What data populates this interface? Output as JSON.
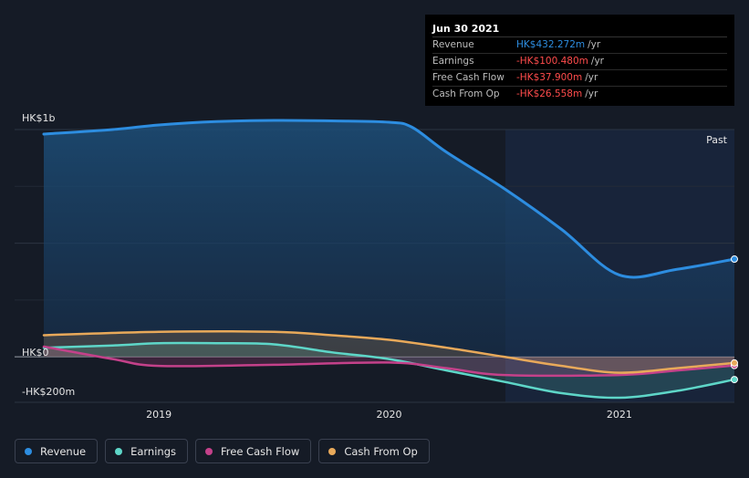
{
  "chart_data": {
    "type": "area",
    "y_axis_labels": [
      "HK$1b",
      "HK$0",
      "-HK$200m"
    ],
    "x_tick_labels": [
      "2019",
      "2020",
      "2021"
    ],
    "ylim": [
      -200,
      1000
    ],
    "grid": true,
    "past_label": "Past",
    "legend_placement": "bottom-left",
    "series": [
      {
        "name": "Revenue",
        "color": "#2d8de0",
        "points": [
          [
            2018.5,
            980
          ],
          [
            2018.8,
            1000
          ],
          [
            2019.0,
            1020
          ],
          [
            2019.25,
            1035
          ],
          [
            2019.5,
            1040
          ],
          [
            2019.75,
            1038
          ],
          [
            2020.0,
            1032
          ],
          [
            2020.1,
            1010
          ],
          [
            2020.25,
            900
          ],
          [
            2020.5,
            740
          ],
          [
            2020.75,
            560
          ],
          [
            2021.0,
            360
          ],
          [
            2021.25,
            385
          ],
          [
            2021.5,
            430
          ]
        ]
      },
      {
        "name": "Earnings",
        "color": "#5ed6c8",
        "points": [
          [
            2018.5,
            40
          ],
          [
            2018.8,
            50
          ],
          [
            2019.0,
            60
          ],
          [
            2019.25,
            60
          ],
          [
            2019.5,
            55
          ],
          [
            2019.75,
            20
          ],
          [
            2020.0,
            -10
          ],
          [
            2020.25,
            -60
          ],
          [
            2020.5,
            -110
          ],
          [
            2020.75,
            -160
          ],
          [
            2021.0,
            -180
          ],
          [
            2021.25,
            -150
          ],
          [
            2021.5,
            -100
          ]
        ]
      },
      {
        "name": "Free Cash Flow",
        "color": "#c4418a",
        "points": [
          [
            2018.5,
            45
          ],
          [
            2018.8,
            -10
          ],
          [
            2019.0,
            -40
          ],
          [
            2019.5,
            -35
          ],
          [
            2020.0,
            -25
          ],
          [
            2020.25,
            -50
          ],
          [
            2020.5,
            -80
          ],
          [
            2021.0,
            -80
          ],
          [
            2021.25,
            -60
          ],
          [
            2021.5,
            -38
          ]
        ]
      },
      {
        "name": "Cash From Op",
        "color": "#e8a95a",
        "points": [
          [
            2018.5,
            95
          ],
          [
            2019.0,
            110
          ],
          [
            2019.5,
            110
          ],
          [
            2019.75,
            95
          ],
          [
            2020.0,
            75
          ],
          [
            2020.25,
            40
          ],
          [
            2020.5,
            0
          ],
          [
            2020.75,
            -40
          ],
          [
            2021.0,
            -70
          ],
          [
            2021.25,
            -50
          ],
          [
            2021.5,
            -27
          ]
        ]
      }
    ]
  },
  "tooltip": {
    "date": "Jun 30 2021",
    "rows": [
      {
        "label": "Revenue",
        "value": "HK$432.272m",
        "unit": "/yr",
        "color": "#2d8de0"
      },
      {
        "label": "Earnings",
        "value": "-HK$100.480m",
        "unit": "/yr",
        "color": "#ff4c4c"
      },
      {
        "label": "Free Cash Flow",
        "value": "-HK$37.900m",
        "unit": "/yr",
        "color": "#ff4c4c"
      },
      {
        "label": "Cash From Op",
        "value": "-HK$26.558m",
        "unit": "/yr",
        "color": "#ff4c4c"
      }
    ]
  },
  "legend": [
    {
      "label": "Revenue",
      "color": "#2d8de0"
    },
    {
      "label": "Earnings",
      "color": "#5ed6c8"
    },
    {
      "label": "Free Cash Flow",
      "color": "#c4418a"
    },
    {
      "label": "Cash From Op",
      "color": "#e8a95a"
    }
  ]
}
